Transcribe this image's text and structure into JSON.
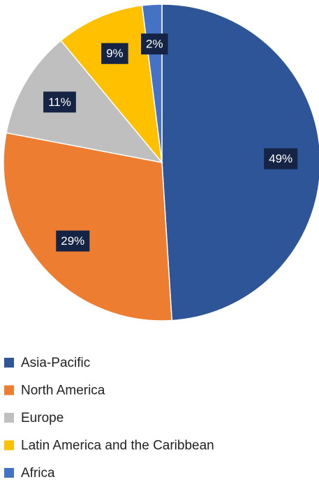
{
  "chart_data": {
    "type": "pie",
    "categories": [
      "Asia-Pacific",
      "North America",
      "Europe",
      "Latin America and the Caribbean",
      "Africa"
    ],
    "values": [
      49,
      29,
      11,
      9,
      2
    ],
    "value_labels": [
      "49%",
      "29%",
      "11%",
      "9%",
      "2%"
    ],
    "colors": [
      "#2e5597",
      "#ed7d31",
      "#bfbfbf",
      "#ffc000",
      "#4472c4"
    ],
    "legend": "bottom"
  }
}
